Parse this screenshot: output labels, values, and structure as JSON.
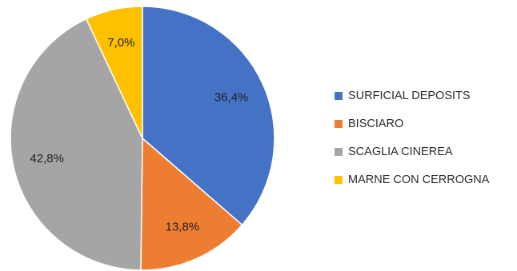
{
  "chart_data": {
    "type": "pie",
    "start_angle_deg": 0,
    "direction": "clockwise",
    "slices": [
      {
        "label": "SURFICIAL DEPOSITS",
        "value": 36.4,
        "value_label": "36,4%",
        "color": "#4472C4"
      },
      {
        "label": "BISCIARO",
        "value": 13.8,
        "value_label": "13,8%",
        "color": "#ED7D31"
      },
      {
        "label": "SCAGLIA CINEREA",
        "value": 42.8,
        "value_label": "42,8%",
        "color": "#A5A5A5"
      },
      {
        "label": "MARNE CON CERROGNA",
        "value": 7.0,
        "value_label": "7,0%",
        "color": "#FFC000"
      }
    ],
    "legend": {
      "placement": "right"
    }
  }
}
